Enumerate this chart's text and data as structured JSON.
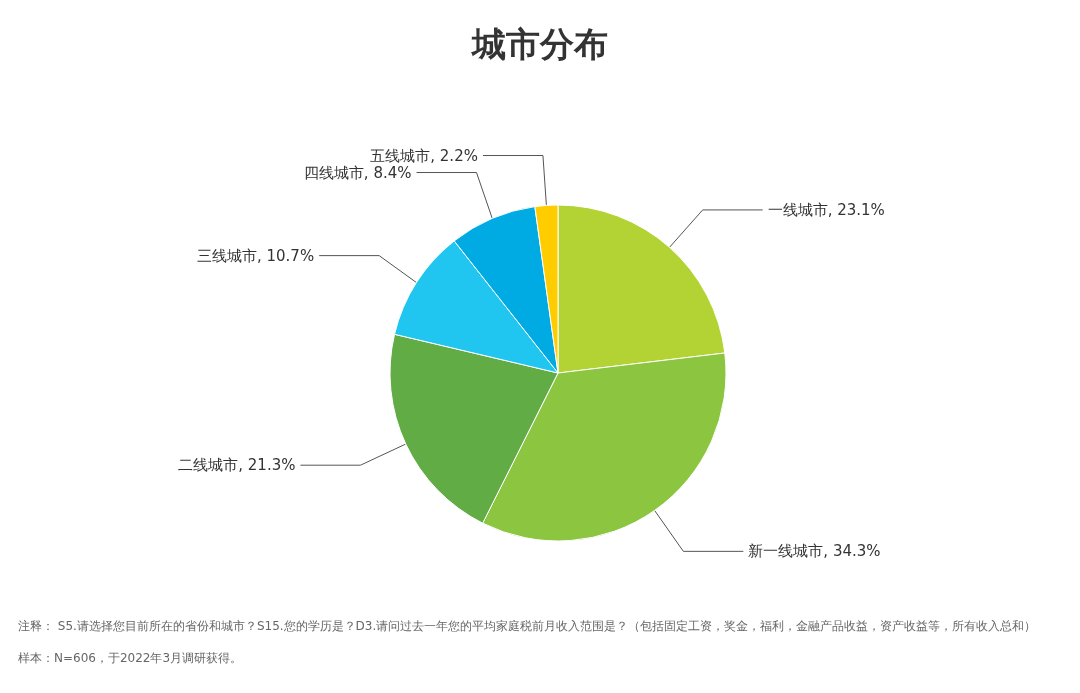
{
  "chart_data": {
    "type": "pie",
    "title": "城市分布",
    "categories": [
      "一线城市",
      "新一线城市",
      "二线城市",
      "三线城市",
      "四线城市",
      "五线城市"
    ],
    "values": [
      23.1,
      34.3,
      21.3,
      10.7,
      8.4,
      2.2
    ],
    "value_labels": [
      "23.1%",
      "34.3%",
      "21.3%",
      "10.7%",
      "8.4%",
      "2.2%"
    ],
    "colors": [
      "#b3d335",
      "#8cc540",
      "#62ac45",
      "#20c6f0",
      "#00abe3",
      "#ffcc00"
    ],
    "legend": false,
    "annotations": [
      "注释： S5.请选择您目前所在的省份和城市？S15.您的学历是？D3.请问过去一年您的平均家庭税前月收入范围是？（包括固定工资，奖金，福利，金融产品收益，资产收益等，所有收入总和）",
      "样本：N=606，于2022年3月调研获得。"
    ]
  }
}
